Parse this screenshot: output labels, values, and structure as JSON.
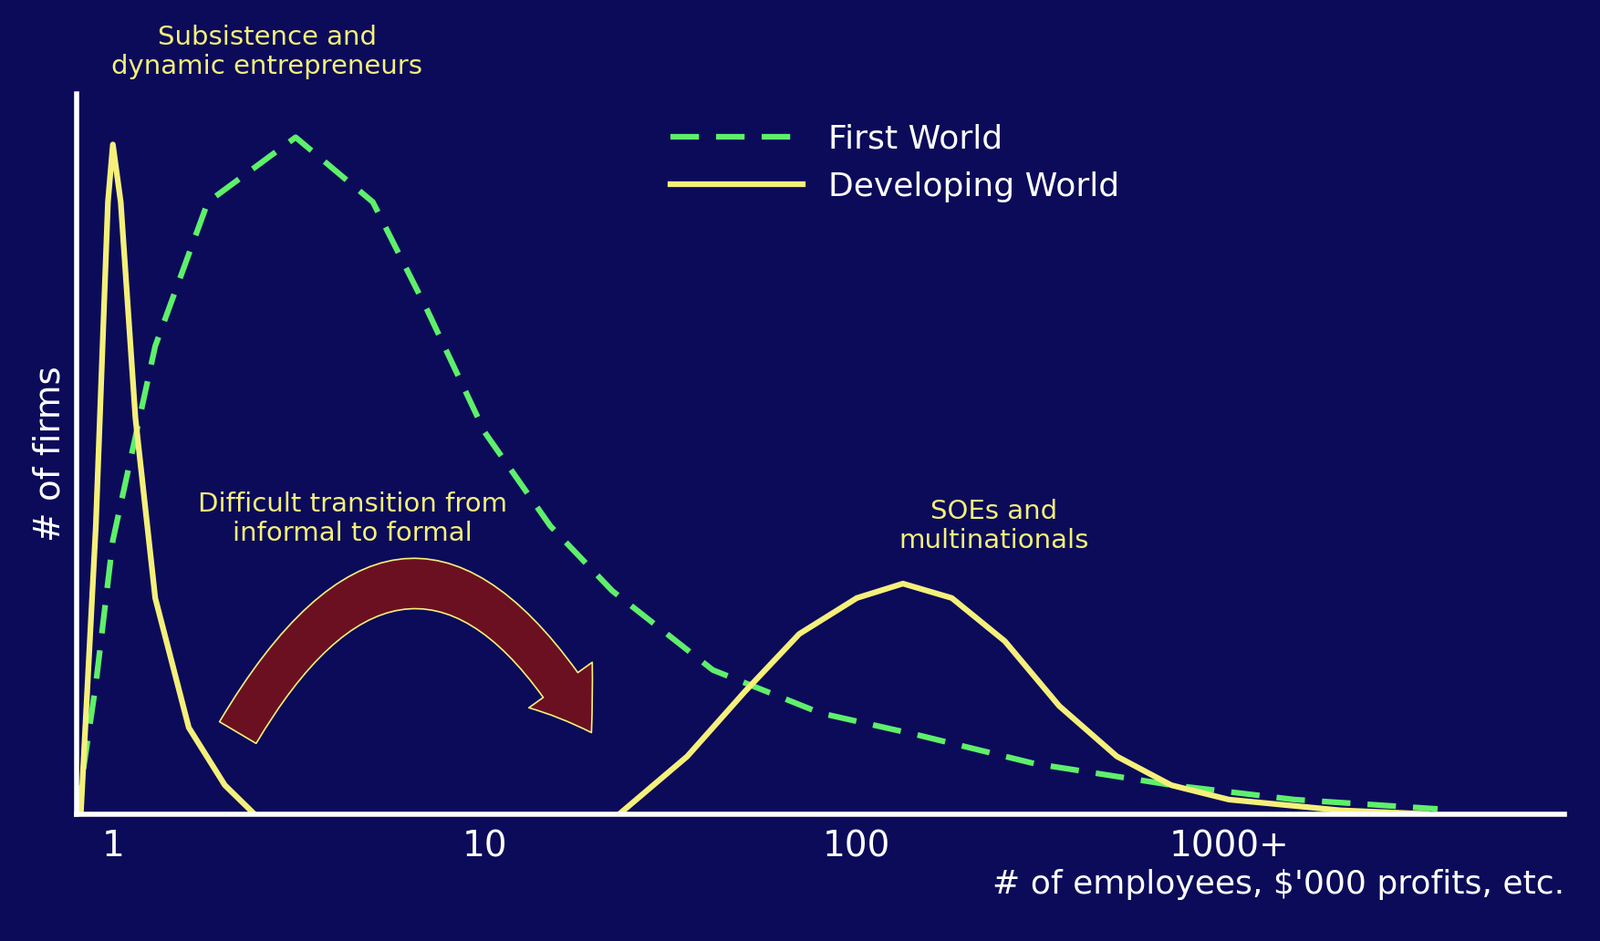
{
  "chart_data": {
    "type": "line",
    "xlabel": "# of employees, $'000 profits, etc.",
    "ylabel": "# of firms",
    "log": "x",
    "xlim": [
      0.8,
      8000
    ],
    "xticks": [
      1,
      10,
      100,
      {
        "value": 1000,
        "label": "1000+"
      }
    ],
    "ylim": [
      0,
      100
    ],
    "yticks": [],
    "tick_labels": "x",
    "grid": false,
    "legend": "upper center",
    "series": [
      {
        "name": "First World",
        "color": "#5ef06a",
        "line_style": "dashed",
        "x": [
          0.8,
          0.9,
          1,
          1.3,
          1.8,
          3.1,
          5,
          7,
          10,
          15,
          22,
          41,
          80,
          145,
          300,
          705,
          1500,
          3640
        ],
        "values": [
          0,
          18,
          38,
          65,
          85,
          94,
          85,
          70,
          53,
          40,
          31,
          20,
          14,
          11,
          7,
          4,
          2,
          0.7
        ]
      },
      {
        "name": "Developing World",
        "color": "#f5f07a",
        "line_style": "solid",
        "x": [
          0.82,
          0.9,
          0.97,
          1.0,
          1.05,
          1.15,
          1.3,
          1.6,
          2.0,
          2.4,
          null,
          23,
          35,
          50,
          70,
          100,
          133,
          180,
          250,
          350,
          500,
          700,
          1000,
          2000,
          3400
        ],
        "values": [
          0,
          40,
          85,
          93,
          85,
          55,
          30,
          12,
          4,
          0,
          null,
          0,
          8,
          17,
          25,
          30,
          32,
          30,
          24,
          15,
          8,
          4,
          2,
          0.5,
          0
        ]
      }
    ],
    "annotations": [
      {
        "text": "Subsistence and\ndynamic entrepreneurs",
        "x": 2.6,
        "y": 102
      },
      {
        "text": "Difficult transition from\ninformal to formal",
        "x": 4.4,
        "y": 41
      },
      {
        "text": "SOEs and\nmultinationals",
        "x": 234,
        "y": 40
      }
    ]
  }
}
